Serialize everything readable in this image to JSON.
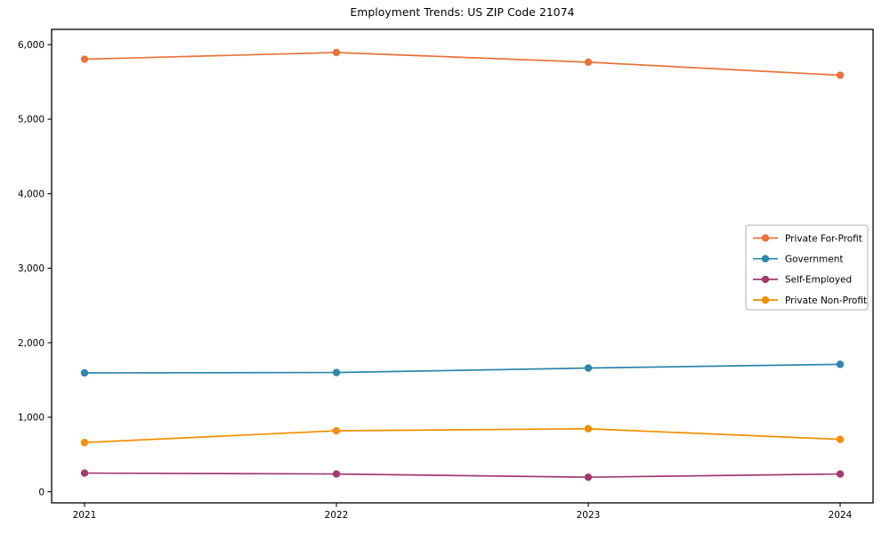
{
  "chart_data": {
    "type": "line",
    "title": "Employment Trends: US ZIP Code 21074",
    "x": [
      "2021",
      "2022",
      "2023",
      "2024"
    ],
    "xlabel": "",
    "ylabel": "",
    "ylim": [
      0,
      6000
    ],
    "yticks": [
      0,
      1000,
      2000,
      3000,
      4000,
      5000,
      6000
    ],
    "ytick_labels": [
      "0",
      "1,000",
      "2,000",
      "3,000",
      "4,000",
      "5,000",
      "6,000"
    ],
    "grid": false,
    "legend_position": "center-right",
    "axis_color": "#000000",
    "legend_border_color": "#b0b0b0",
    "series": [
      {
        "name": "Private For-Profit",
        "color": "#E8743B",
        "values": [
          5805,
          5895,
          5765,
          5590
        ]
      },
      {
        "name": "Government",
        "color": "#2E86AB",
        "values": [
          1595,
          1600,
          1660,
          1710
        ]
      },
      {
        "name": "Self-Employed",
        "color": "#A23B72",
        "values": [
          250,
          238,
          195,
          238
        ]
      },
      {
        "name": "Private Non-Profit",
        "color": "#F18F01",
        "values": [
          660,
          818,
          845,
          703
        ]
      }
    ]
  }
}
